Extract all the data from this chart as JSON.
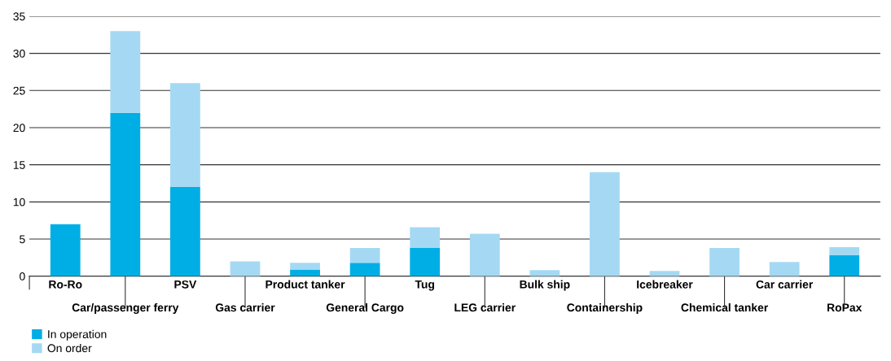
{
  "chart_data": {
    "type": "bar",
    "stacked": true,
    "categories": [
      "Ro-Ro",
      "Car/passenger ferry",
      "PSV",
      "Gas carrier",
      "Product tanker",
      "General Cargo",
      "Tug",
      "LEG carrier",
      "Bulk ship",
      "Containership",
      "Icebreaker",
      "Chemical tanker",
      "Car carrier",
      "RoPax"
    ],
    "series": [
      {
        "name": "In operation",
        "color": "#00aee6",
        "values": [
          7,
          22,
          12,
          0,
          0.9,
          1.8,
          3.8,
          0,
          0,
          0,
          0,
          0,
          0,
          2.8
        ]
      },
      {
        "name": "On order",
        "color": "#a5d9f3",
        "values": [
          0,
          11,
          14,
          2,
          0.9,
          2,
          2.8,
          5.7,
          0.8,
          14,
          0.7,
          3.8,
          1.9,
          1.1
        ]
      }
    ],
    "ylim": [
      0,
      35
    ],
    "yticks": [
      0,
      5,
      10,
      15,
      20,
      25,
      30,
      35
    ],
    "grid": "y",
    "legend": "bottom left"
  }
}
